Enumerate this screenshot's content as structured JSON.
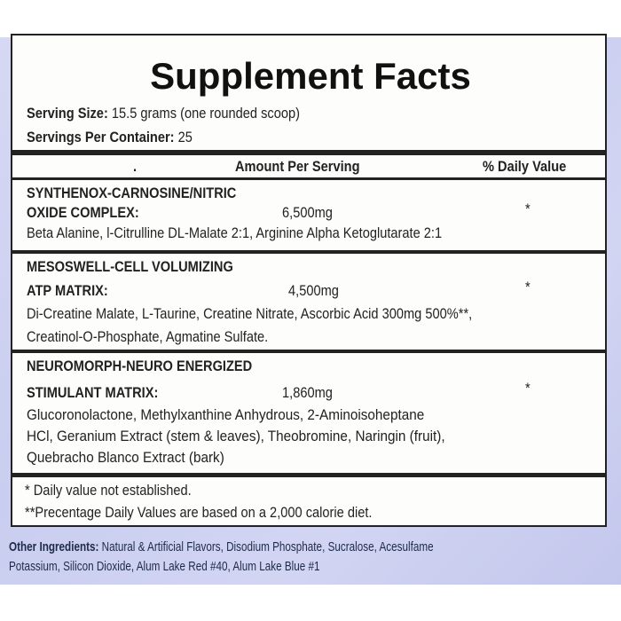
{
  "title": "Supplement Facts",
  "serving_size": {
    "label": "Serving Size:",
    "value": " 15.5 grams (one rounded scoop)"
  },
  "servings_per_container": {
    "label": "Servings Per Container:",
    "value": " 25"
  },
  "header": {
    "dot": ".",
    "amount": "Amount Per Serving",
    "daily_value": "% Daily Value"
  },
  "sections": [
    {
      "name_line1": "SYNTHENOX-CARNOSINE/NITRIC",
      "name_line2": "OXIDE COMPLEX:",
      "amount": "6,500mg",
      "dv": "*",
      "ingredients": [
        "Beta Alanine, l-Citrulline DL-Malate 2:1, Arginine Alpha Ketoglutarate 2:1"
      ]
    },
    {
      "name_line1": "MESOSWELL-CELL VOLUMIZING",
      "name_line2": "ATP MATRIX:",
      "amount": "4,500mg",
      "dv": "*",
      "ingredients": [
        "Di-Creatine Malate, L-Taurine, Creatine Nitrate, Ascorbic Acid 300mg  500%**,",
        "Creatinol-O-Phosphate, Agmatine Sulfate."
      ]
    },
    {
      "name_line1": "NEUROMORPH-NEURO ENERGIZED",
      "name_line2": "STIMULANT MATRIX:",
      "amount": "1,860mg",
      "dv": "*",
      "ingredients": [
        "Glucoronolactone, Methylxanthine Anhydrous, 2-Aminoisoheptane",
        "HCl, Geranium Extract (stem & leaves), Theobromine, Naringin (fruit),",
        "Quebracho Blanco Extract (bark)"
      ]
    }
  ],
  "footnotes": [
    "* Daily value not established.",
    "**Precentage Daily Values are based on a 2,000 calorie diet."
  ],
  "other_ingredients": {
    "label": "Other Ingredients:",
    "line1": " Natural & Artificial Flavors, Disodium Phosphate, Sucralose, Acesulfame",
    "line2": "Potassium, Silicon Dioxide, Alum Lake Red #40, Alum Lake Blue #1"
  }
}
